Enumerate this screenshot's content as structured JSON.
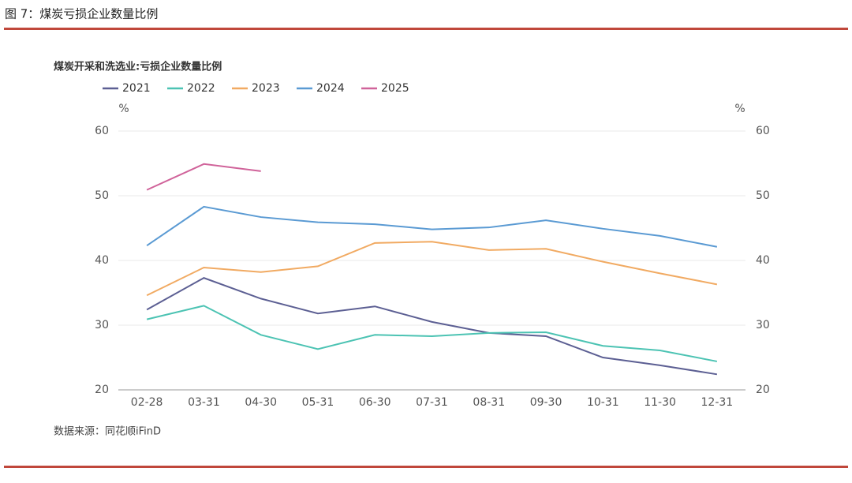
{
  "header": "图 7：煤炭亏损企业数量比例",
  "source": "数据来源：同花顺iFinD",
  "chart_data": {
    "type": "line",
    "title": "煤炭开采和洗选业:亏损企业数量比例",
    "y_unit": "%",
    "y2_unit": "%",
    "categories": [
      "02-28",
      "03-31",
      "04-30",
      "05-31",
      "06-30",
      "07-31",
      "08-31",
      "09-30",
      "10-31",
      "11-30",
      "12-31"
    ],
    "series": [
      {
        "name": "2021",
        "color": "#5c5f93",
        "values": [
          32.4,
          37.3,
          34.1,
          31.8,
          32.9,
          30.5,
          28.8,
          28.3,
          25.0,
          23.8,
          22.4
        ]
      },
      {
        "name": "2022",
        "color": "#4cc3b3",
        "values": [
          30.9,
          33.0,
          28.5,
          26.3,
          28.5,
          28.3,
          28.8,
          28.9,
          26.8,
          26.1,
          24.4
        ]
      },
      {
        "name": "2023",
        "color": "#f1aa62",
        "values": [
          34.6,
          38.9,
          38.2,
          39.1,
          42.7,
          42.9,
          41.6,
          41.8,
          39.8,
          38.0,
          36.3
        ]
      },
      {
        "name": "2024",
        "color": "#5a9ad3",
        "values": [
          42.3,
          48.3,
          46.7,
          45.9,
          45.6,
          44.8,
          45.1,
          46.2,
          44.9,
          43.8,
          42.1
        ]
      },
      {
        "name": "2025",
        "color": "#d0639a",
        "values": [
          50.9,
          54.9,
          53.8,
          null,
          null,
          null,
          null,
          null,
          null,
          null,
          null
        ]
      }
    ],
    "ylim": [
      20,
      60
    ],
    "yticks": [
      20,
      30,
      40,
      50,
      60
    ],
    "y2lim": [
      20,
      60
    ],
    "y2ticks": [
      20,
      30,
      40,
      50,
      60
    ],
    "grid": true
  }
}
